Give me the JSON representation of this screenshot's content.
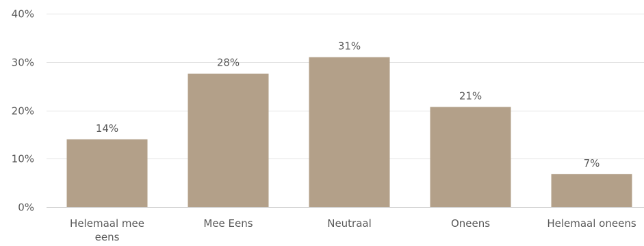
{
  "chart_data": {
    "type": "bar",
    "categories": [
      [
        "Helemaal mee",
        "eens"
      ],
      [
        "Mee Eens"
      ],
      [
        "Neutraal"
      ],
      [
        "Oneens"
      ],
      [
        "Helemaal oneens"
      ]
    ],
    "values": [
      14,
      27.6,
      31,
      20.7,
      6.8
    ],
    "data_labels": [
      "14%",
      "28%",
      "31%",
      "21%",
      "7%"
    ],
    "y_ticks": [
      0,
      10,
      20,
      30,
      40
    ],
    "y_tick_labels": [
      "0%",
      "10%",
      "20%",
      "30%",
      "40%"
    ],
    "ylim": [
      0,
      40
    ],
    "grid": true,
    "legend": "none",
    "title": "",
    "xlabel": "",
    "ylabel": "",
    "bar_color": "#b3a089"
  }
}
